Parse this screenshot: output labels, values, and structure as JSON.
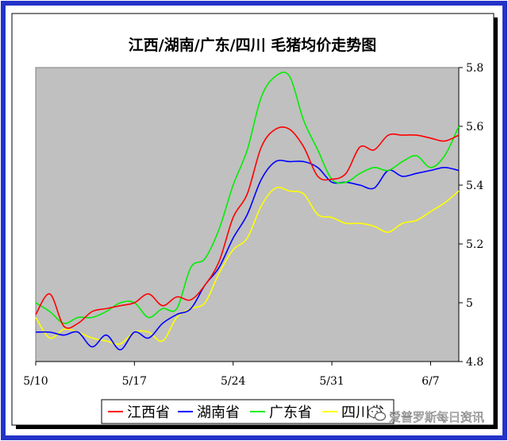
{
  "chart_data": {
    "type": "line",
    "title": "江西/湖南/广东/四川 毛猪均价走势图",
    "xlabel": "",
    "ylabel": "",
    "x_ticks": [
      "5/10",
      "5/17",
      "5/24",
      "5/31",
      "6/7"
    ],
    "ylim": [
      4.8,
      5.8
    ],
    "y_ticks": [
      "4.8",
      "5",
      "5.2",
      "5.4",
      "5.6",
      "5.8"
    ],
    "y_axis_side": "right",
    "grid": false,
    "legend_position": "bottom",
    "background_color": "#c0c0c0",
    "series": [
      {
        "name": "江西省",
        "color": "#ff0000",
        "points": [
          [
            "5/10",
            4.96
          ],
          [
            "5/11",
            5.03
          ],
          [
            "5/12",
            4.92
          ],
          [
            "5/13",
            4.93
          ],
          [
            "5/14",
            4.97
          ],
          [
            "5/15",
            4.98
          ],
          [
            "5/16",
            4.99
          ],
          [
            "5/17",
            5.0
          ],
          [
            "5/18",
            5.03
          ],
          [
            "5/19",
            4.99
          ],
          [
            "5/20",
            5.02
          ],
          [
            "5/21",
            5.01
          ],
          [
            "5/22",
            5.06
          ],
          [
            "5/23",
            5.14
          ],
          [
            "5/24",
            5.29
          ],
          [
            "5/25",
            5.37
          ],
          [
            "5/26",
            5.53
          ],
          [
            "5/27",
            5.59
          ],
          [
            "5/28",
            5.59
          ],
          [
            "5/29",
            5.53
          ],
          [
            "5/30",
            5.43
          ],
          [
            "5/31",
            5.42
          ],
          [
            "6/1",
            5.44
          ],
          [
            "6/2",
            5.53
          ],
          [
            "6/3",
            5.52
          ],
          [
            "6/4",
            5.57
          ],
          [
            "6/5",
            5.57
          ],
          [
            "6/6",
            5.57
          ],
          [
            "6/7",
            5.56
          ],
          [
            "6/8",
            5.55
          ],
          [
            "6/9",
            5.57
          ]
        ]
      },
      {
        "name": "湖南省",
        "color": "#0000ff",
        "points": [
          [
            "5/10",
            4.9
          ],
          [
            "5/11",
            4.9
          ],
          [
            "5/12",
            4.89
          ],
          [
            "5/13",
            4.9
          ],
          [
            "5/14",
            4.85
          ],
          [
            "5/15",
            4.89
          ],
          [
            "5/16",
            4.84
          ],
          [
            "5/17",
            4.9
          ],
          [
            "5/18",
            4.88
          ],
          [
            "5/19",
            4.93
          ],
          [
            "5/20",
            4.96
          ],
          [
            "5/21",
            4.98
          ],
          [
            "5/22",
            5.06
          ],
          [
            "5/23",
            5.12
          ],
          [
            "5/24",
            5.22
          ],
          [
            "5/25",
            5.3
          ],
          [
            "5/26",
            5.42
          ],
          [
            "5/27",
            5.48
          ],
          [
            "5/28",
            5.48
          ],
          [
            "5/29",
            5.48
          ],
          [
            "5/30",
            5.46
          ],
          [
            "5/31",
            5.41
          ],
          [
            "6/1",
            5.41
          ],
          [
            "6/2",
            5.4
          ],
          [
            "6/3",
            5.39
          ],
          [
            "6/4",
            5.45
          ],
          [
            "6/5",
            5.43
          ],
          [
            "6/6",
            5.44
          ],
          [
            "6/7",
            5.45
          ],
          [
            "6/8",
            5.46
          ],
          [
            "6/9",
            5.45
          ]
        ]
      },
      {
        "name": "广东省",
        "color": "#00ee00",
        "points": [
          [
            "5/10",
            5.0
          ],
          [
            "5/11",
            4.97
          ],
          [
            "5/12",
            4.93
          ],
          [
            "5/13",
            4.95
          ],
          [
            "5/14",
            4.95
          ],
          [
            "5/15",
            4.97
          ],
          [
            "5/16",
            5.0
          ],
          [
            "5/17",
            5.0
          ],
          [
            "5/18",
            4.95
          ],
          [
            "5/19",
            4.98
          ],
          [
            "5/20",
            4.98
          ],
          [
            "5/21",
            5.12
          ],
          [
            "5/22",
            5.15
          ],
          [
            "5/23",
            5.25
          ],
          [
            "5/24",
            5.4
          ],
          [
            "5/25",
            5.52
          ],
          [
            "5/26",
            5.7
          ],
          [
            "5/27",
            5.77
          ],
          [
            "5/28",
            5.77
          ],
          [
            "5/29",
            5.62
          ],
          [
            "5/30",
            5.52
          ],
          [
            "5/31",
            5.42
          ],
          [
            "6/1",
            5.41
          ],
          [
            "6/2",
            5.44
          ],
          [
            "6/3",
            5.46
          ],
          [
            "6/4",
            5.45
          ],
          [
            "6/5",
            5.48
          ],
          [
            "6/6",
            5.5
          ],
          [
            "6/7",
            5.46
          ],
          [
            "6/8",
            5.5
          ],
          [
            "6/9",
            5.6
          ]
        ]
      },
      {
        "name": "四川省",
        "color": "#ffff00",
        "points": [
          [
            "5/10",
            4.95
          ],
          [
            "5/11",
            4.88
          ],
          [
            "5/12",
            4.91
          ],
          [
            "5/13",
            4.9
          ],
          [
            "5/14",
            4.88
          ],
          [
            "5/15",
            4.87
          ],
          [
            "5/16",
            4.86
          ],
          [
            "5/17",
            4.9
          ],
          [
            "5/18",
            4.9
          ],
          [
            "5/19",
            4.87
          ],
          [
            "5/20",
            4.95
          ],
          [
            "5/21",
            4.98
          ],
          [
            "5/22",
            5.0
          ],
          [
            "5/23",
            5.1
          ],
          [
            "5/24",
            5.18
          ],
          [
            "5/25",
            5.22
          ],
          [
            "5/26",
            5.33
          ],
          [
            "5/27",
            5.39
          ],
          [
            "5/28",
            5.38
          ],
          [
            "5/29",
            5.37
          ],
          [
            "5/30",
            5.3
          ],
          [
            "5/31",
            5.29
          ],
          [
            "6/1",
            5.27
          ],
          [
            "6/2",
            5.27
          ],
          [
            "6/3",
            5.26
          ],
          [
            "6/4",
            5.24
          ],
          [
            "6/5",
            5.27
          ],
          [
            "6/6",
            5.28
          ],
          [
            "6/7",
            5.31
          ],
          [
            "6/8",
            5.34
          ],
          [
            "6/9",
            5.38
          ]
        ]
      }
    ]
  },
  "watermark": {
    "text": "爱普罗斯每日资讯",
    "icon": "wechat-icon"
  },
  "colors": {
    "frame_border": "#2333c8",
    "plot_background": "#c0c0c0",
    "chart_background": "#ffffff"
  }
}
